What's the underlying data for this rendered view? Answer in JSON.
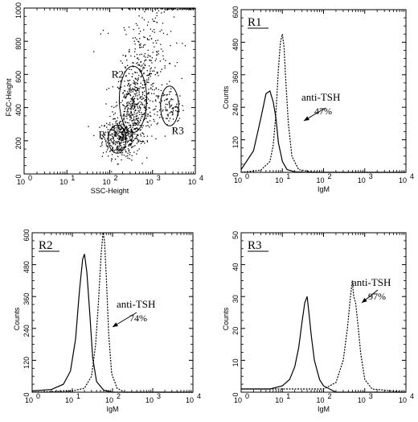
{
  "chart_data": [
    {
      "type": "scatter",
      "region": "",
      "xlabel": "SSC-Height",
      "ylabel": "FSC-Height",
      "x_scale": "log",
      "xlim": [
        1,
        10000
      ],
      "ylim": [
        0,
        1000
      ],
      "x_ticks": [
        {
          "v": 1,
          "label": "10",
          "exp": "0"
        },
        {
          "v": 10,
          "label": "10",
          "exp": "1"
        },
        {
          "v": 100,
          "label": "10",
          "exp": "2"
        },
        {
          "v": 1000,
          "label": "10",
          "exp": "3"
        },
        {
          "v": 10000,
          "label": "10",
          "exp": "4"
        }
      ],
      "y_ticks": [
        0,
        200,
        400,
        600,
        800,
        1000
      ],
      "gates": [
        {
          "name": "R1",
          "cx": 150,
          "cy": 210,
          "rx_dec": 0.21,
          "ry": 85,
          "label_x": 55,
          "label_y": 215
        },
        {
          "name": "R2",
          "cx": 350,
          "cy": 450,
          "rx_dec": 0.32,
          "ry": 200,
          "label_x": 110,
          "label_y": 580
        },
        {
          "name": "R3",
          "cx": 2500,
          "cy": 410,
          "rx_dec": 0.21,
          "ry": 120,
          "label_x": 2800,
          "label_y": 240
        }
      ],
      "clusters": [
        {
          "cx": 180,
          "cy": 220,
          "sdx_dec": 0.22,
          "sdy": 60,
          "n": 380
        },
        {
          "cx": 350,
          "cy": 400,
          "sdx_dec": 0.22,
          "sdy": 110,
          "n": 420
        },
        {
          "cx": 700,
          "cy": 650,
          "sdx_dec": 0.25,
          "sdy": 160,
          "n": 220
        },
        {
          "cx": 2500,
          "cy": 400,
          "sdx_dec": 0.14,
          "sdy": 45,
          "n": 90
        },
        {
          "cx": 5000,
          "cy": 1000,
          "sdx_dec": 0.3,
          "sdy": 5,
          "n": 35
        },
        {
          "cx": 1500,
          "cy": 820,
          "sdx_dec": 0.6,
          "sdy": 220,
          "n": 70
        }
      ]
    },
    {
      "type": "line",
      "region": "R1",
      "xlabel": "IgM",
      "ylabel": "Counts",
      "x_scale": "log",
      "xlim": [
        1,
        10000
      ],
      "ylim": [
        0,
        600
      ],
      "x_ticks": [
        {
          "v": 1,
          "label": "10",
          "exp": "0"
        },
        {
          "v": 10,
          "label": "10",
          "exp": "1"
        },
        {
          "v": 100,
          "label": "10",
          "exp": "2"
        },
        {
          "v": 1000,
          "label": "10",
          "exp": "3"
        },
        {
          "v": 10000,
          "label": "10",
          "exp": "4"
        }
      ],
      "y_ticks": [
        0,
        120,
        240,
        360,
        480,
        600
      ],
      "annotation": {
        "text": "anti-TSH",
        "pct": "47%"
      },
      "series": [
        {
          "style": "solid",
          "x": [
            1,
            2,
            3,
            4,
            5,
            6,
            7,
            8,
            10,
            13,
            20,
            40,
            100,
            1000,
            10000
          ],
          "y": [
            10,
            80,
            200,
            290,
            300,
            260,
            200,
            110,
            40,
            10,
            2,
            0,
            0,
            0,
            0
          ]
        },
        {
          "style": "dashed",
          "x": [
            1,
            3,
            5,
            6,
            7,
            8,
            9,
            10,
            11,
            12,
            14,
            17,
            25,
            50,
            100,
            1000,
            10000
          ],
          "y": [
            0,
            8,
            40,
            100,
            220,
            380,
            480,
            510,
            460,
            350,
            180,
            60,
            10,
            2,
            0,
            0,
            0
          ]
        }
      ]
    },
    {
      "type": "line",
      "region": "R2",
      "xlabel": "IgM",
      "ylabel": "Counts",
      "x_scale": "log",
      "xlim": [
        1,
        10000
      ],
      "ylim": [
        0,
        600
      ],
      "x_ticks": [
        {
          "v": 1,
          "label": "10",
          "exp": "0"
        },
        {
          "v": 10,
          "label": "10",
          "exp": "1"
        },
        {
          "v": 100,
          "label": "10",
          "exp": "2"
        },
        {
          "v": 1000,
          "label": "10",
          "exp": "3"
        },
        {
          "v": 10000,
          "label": "10",
          "exp": "4"
        }
      ],
      "y_ticks": [
        0,
        120,
        240,
        360,
        480,
        600
      ],
      "annotation": {
        "text": "anti-TSH",
        "pct": "74%"
      },
      "series": [
        {
          "style": "solid",
          "x": [
            1,
            3,
            6,
            9,
            12,
            15,
            18,
            20,
            23,
            27,
            32,
            40,
            60,
            100,
            10000
          ],
          "y": [
            5,
            10,
            30,
            80,
            200,
            380,
            500,
            520,
            450,
            300,
            130,
            40,
            8,
            0,
            0
          ]
        },
        {
          "style": "dashed",
          "x": [
            1,
            10,
            20,
            30,
            38,
            45,
            52,
            58,
            63,
            70,
            80,
            95,
            130,
            200,
            10000
          ],
          "y": [
            0,
            5,
            15,
            60,
            180,
            350,
            520,
            600,
            570,
            430,
            220,
            70,
            15,
            0,
            0
          ]
        }
      ]
    },
    {
      "type": "line",
      "region": "R3",
      "xlabel": "IgM",
      "ylabel": "Counts",
      "x_scale": "log",
      "xlim": [
        1,
        10000
      ],
      "ylim": [
        0,
        50
      ],
      "x_ticks": [
        {
          "v": 1,
          "label": "10",
          "exp": "0"
        },
        {
          "v": 10,
          "label": "10",
          "exp": "1"
        },
        {
          "v": 100,
          "label": "10",
          "exp": "2"
        },
        {
          "v": 1000,
          "label": "10",
          "exp": "3"
        },
        {
          "v": 10000,
          "label": "10",
          "exp": "4"
        }
      ],
      "y_ticks": [
        0,
        10,
        20,
        30,
        40,
        50
      ],
      "annotation": {
        "text": "anti-TSH",
        "pct": "97%"
      },
      "series": [
        {
          "style": "solid",
          "x": [
            1,
            5,
            10,
            15,
            20,
            25,
            30,
            35,
            40,
            45,
            50,
            60,
            80,
            100,
            200,
            10000
          ],
          "y": [
            1,
            1,
            2,
            4,
            8,
            14,
            22,
            28,
            30,
            24,
            18,
            10,
            4,
            2,
            0,
            0
          ]
        },
        {
          "style": "dashed",
          "x": [
            1,
            50,
            100,
            200,
            300,
            380,
            450,
            500,
            540,
            600,
            700,
            800,
            1000,
            1500,
            10000
          ],
          "y": [
            1,
            1,
            1,
            3,
            10,
            20,
            30,
            35,
            30,
            28,
            20,
            12,
            4,
            1,
            0
          ]
        }
      ]
    }
  ]
}
